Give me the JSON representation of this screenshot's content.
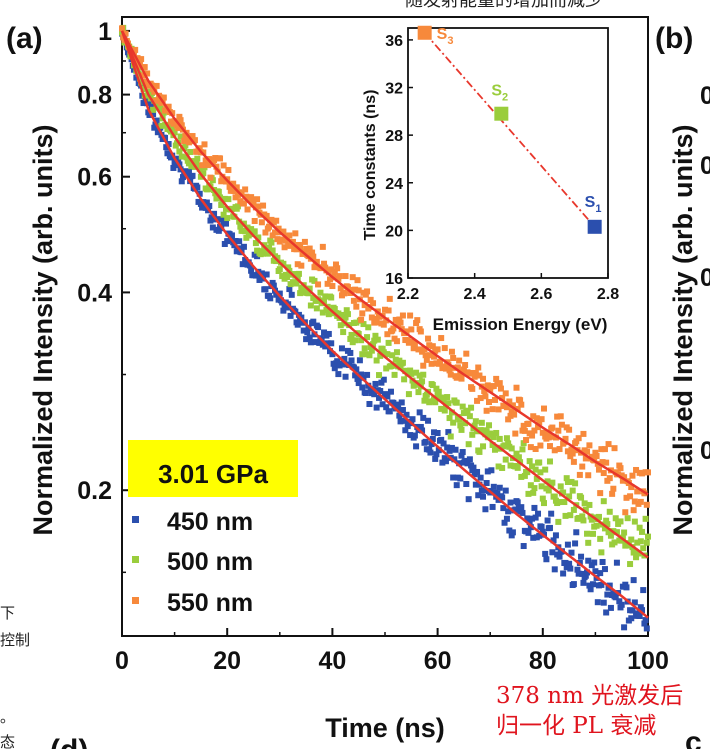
{
  "text": {
    "top_fragment": "随发射能量的增加而减少",
    "panel_label_a": "(a)",
    "panel_label_b": "(b)",
    "panel_label_d": "(d)",
    "left_fragment_1": "下",
    "left_fragment_2": "控制",
    "left_fragment_3": "。",
    "left_fragment_4": "态",
    "right_ylabel_fragment": "Normalized Intensity (arb. units)",
    "right_tick_fragments": [
      "0",
      "0",
      "0",
      "0"
    ],
    "caption_line1": "378 nm 光激发后",
    "caption_line2": "归一化 PL 衰减",
    "caption_partial_char": "c"
  },
  "colors": {
    "s450": "#2b4fae",
    "s500": "#9acd3c",
    "s550": "#f7893b",
    "fit": "#e8372c",
    "legend_bg": "#ffff00",
    "caption": "#e0141e",
    "s1": "#2b4fae",
    "s2": "#9acd3c",
    "s3": "#f7893b"
  },
  "chart_data": [
    {
      "type": "scatter",
      "xlabel": "Time (ns)",
      "ylabel": "Normalized Intensity (arb. units)",
      "xlim": [
        0,
        100
      ],
      "ylim": [
        0.12,
        1.05
      ],
      "y_scale": "log",
      "xticks": [
        0,
        20,
        40,
        60,
        80,
        100
      ],
      "yticks": [
        1,
        0.8,
        0.6,
        0.4,
        0.2
      ],
      "ytick_labels": [
        "1",
        "0.8",
        "0.6",
        "0.4",
        "0.2"
      ],
      "legend": {
        "title": "3.01 GPa",
        "position": "bottom-left",
        "entries": [
          "450 nm",
          "500 nm",
          "550 nm"
        ]
      },
      "series": [
        {
          "name": "450 nm",
          "x": [
            0,
            5,
            10,
            15,
            20,
            25,
            30,
            35,
            40,
            45,
            50,
            55,
            60,
            65,
            70,
            75,
            80,
            85,
            90,
            95,
            100
          ],
          "y": [
            1.0,
            0.76,
            0.64,
            0.555,
            0.49,
            0.438,
            0.395,
            0.358,
            0.326,
            0.299,
            0.275,
            0.253,
            0.233,
            0.215,
            0.199,
            0.184,
            0.171,
            0.159,
            0.148,
            0.138,
            0.128
          ]
        },
        {
          "name": "500 nm",
          "x": [
            0,
            5,
            10,
            15,
            20,
            25,
            30,
            35,
            40,
            45,
            50,
            55,
            60,
            65,
            70,
            75,
            80,
            85,
            90,
            95,
            100
          ],
          "y": [
            1.0,
            0.8,
            0.69,
            0.605,
            0.54,
            0.488,
            0.444,
            0.407,
            0.374,
            0.345,
            0.319,
            0.296,
            0.275,
            0.256,
            0.238,
            0.222,
            0.207,
            0.193,
            0.181,
            0.169,
            0.158
          ]
        },
        {
          "name": "550 nm",
          "x": [
            0,
            5,
            10,
            15,
            20,
            25,
            30,
            35,
            40,
            45,
            50,
            55,
            60,
            65,
            70,
            75,
            80,
            85,
            90,
            95,
            100
          ],
          "y": [
            1.0,
            0.84,
            0.735,
            0.655,
            0.592,
            0.539,
            0.494,
            0.456,
            0.422,
            0.392,
            0.366,
            0.342,
            0.32,
            0.3,
            0.282,
            0.265,
            0.249,
            0.235,
            0.221,
            0.209,
            0.197
          ]
        }
      ]
    },
    {
      "type": "scatter",
      "xlabel": "Emission Energy (eV)",
      "ylabel": "Time constants (ns)",
      "xlim": [
        2.2,
        2.8
      ],
      "ylim": [
        16,
        37
      ],
      "xticks": [
        2.2,
        2.4,
        2.6,
        2.8
      ],
      "xtick_labels": [
        "2.2",
        "2.4",
        "2.6",
        "2.8"
      ],
      "yticks": [
        16,
        20,
        24,
        28,
        32,
        36
      ],
      "ytick_labels": [
        "16",
        "20",
        "24",
        "28",
        "32",
        "36"
      ],
      "points": [
        {
          "label": "S",
          "sub": "3",
          "x": 2.25,
          "y": 36.6
        },
        {
          "label": "S",
          "sub": "2",
          "x": 2.48,
          "y": 29.8
        },
        {
          "label": "S",
          "sub": "1",
          "x": 2.76,
          "y": 20.3
        }
      ],
      "trend_line": "dash-dot"
    }
  ]
}
